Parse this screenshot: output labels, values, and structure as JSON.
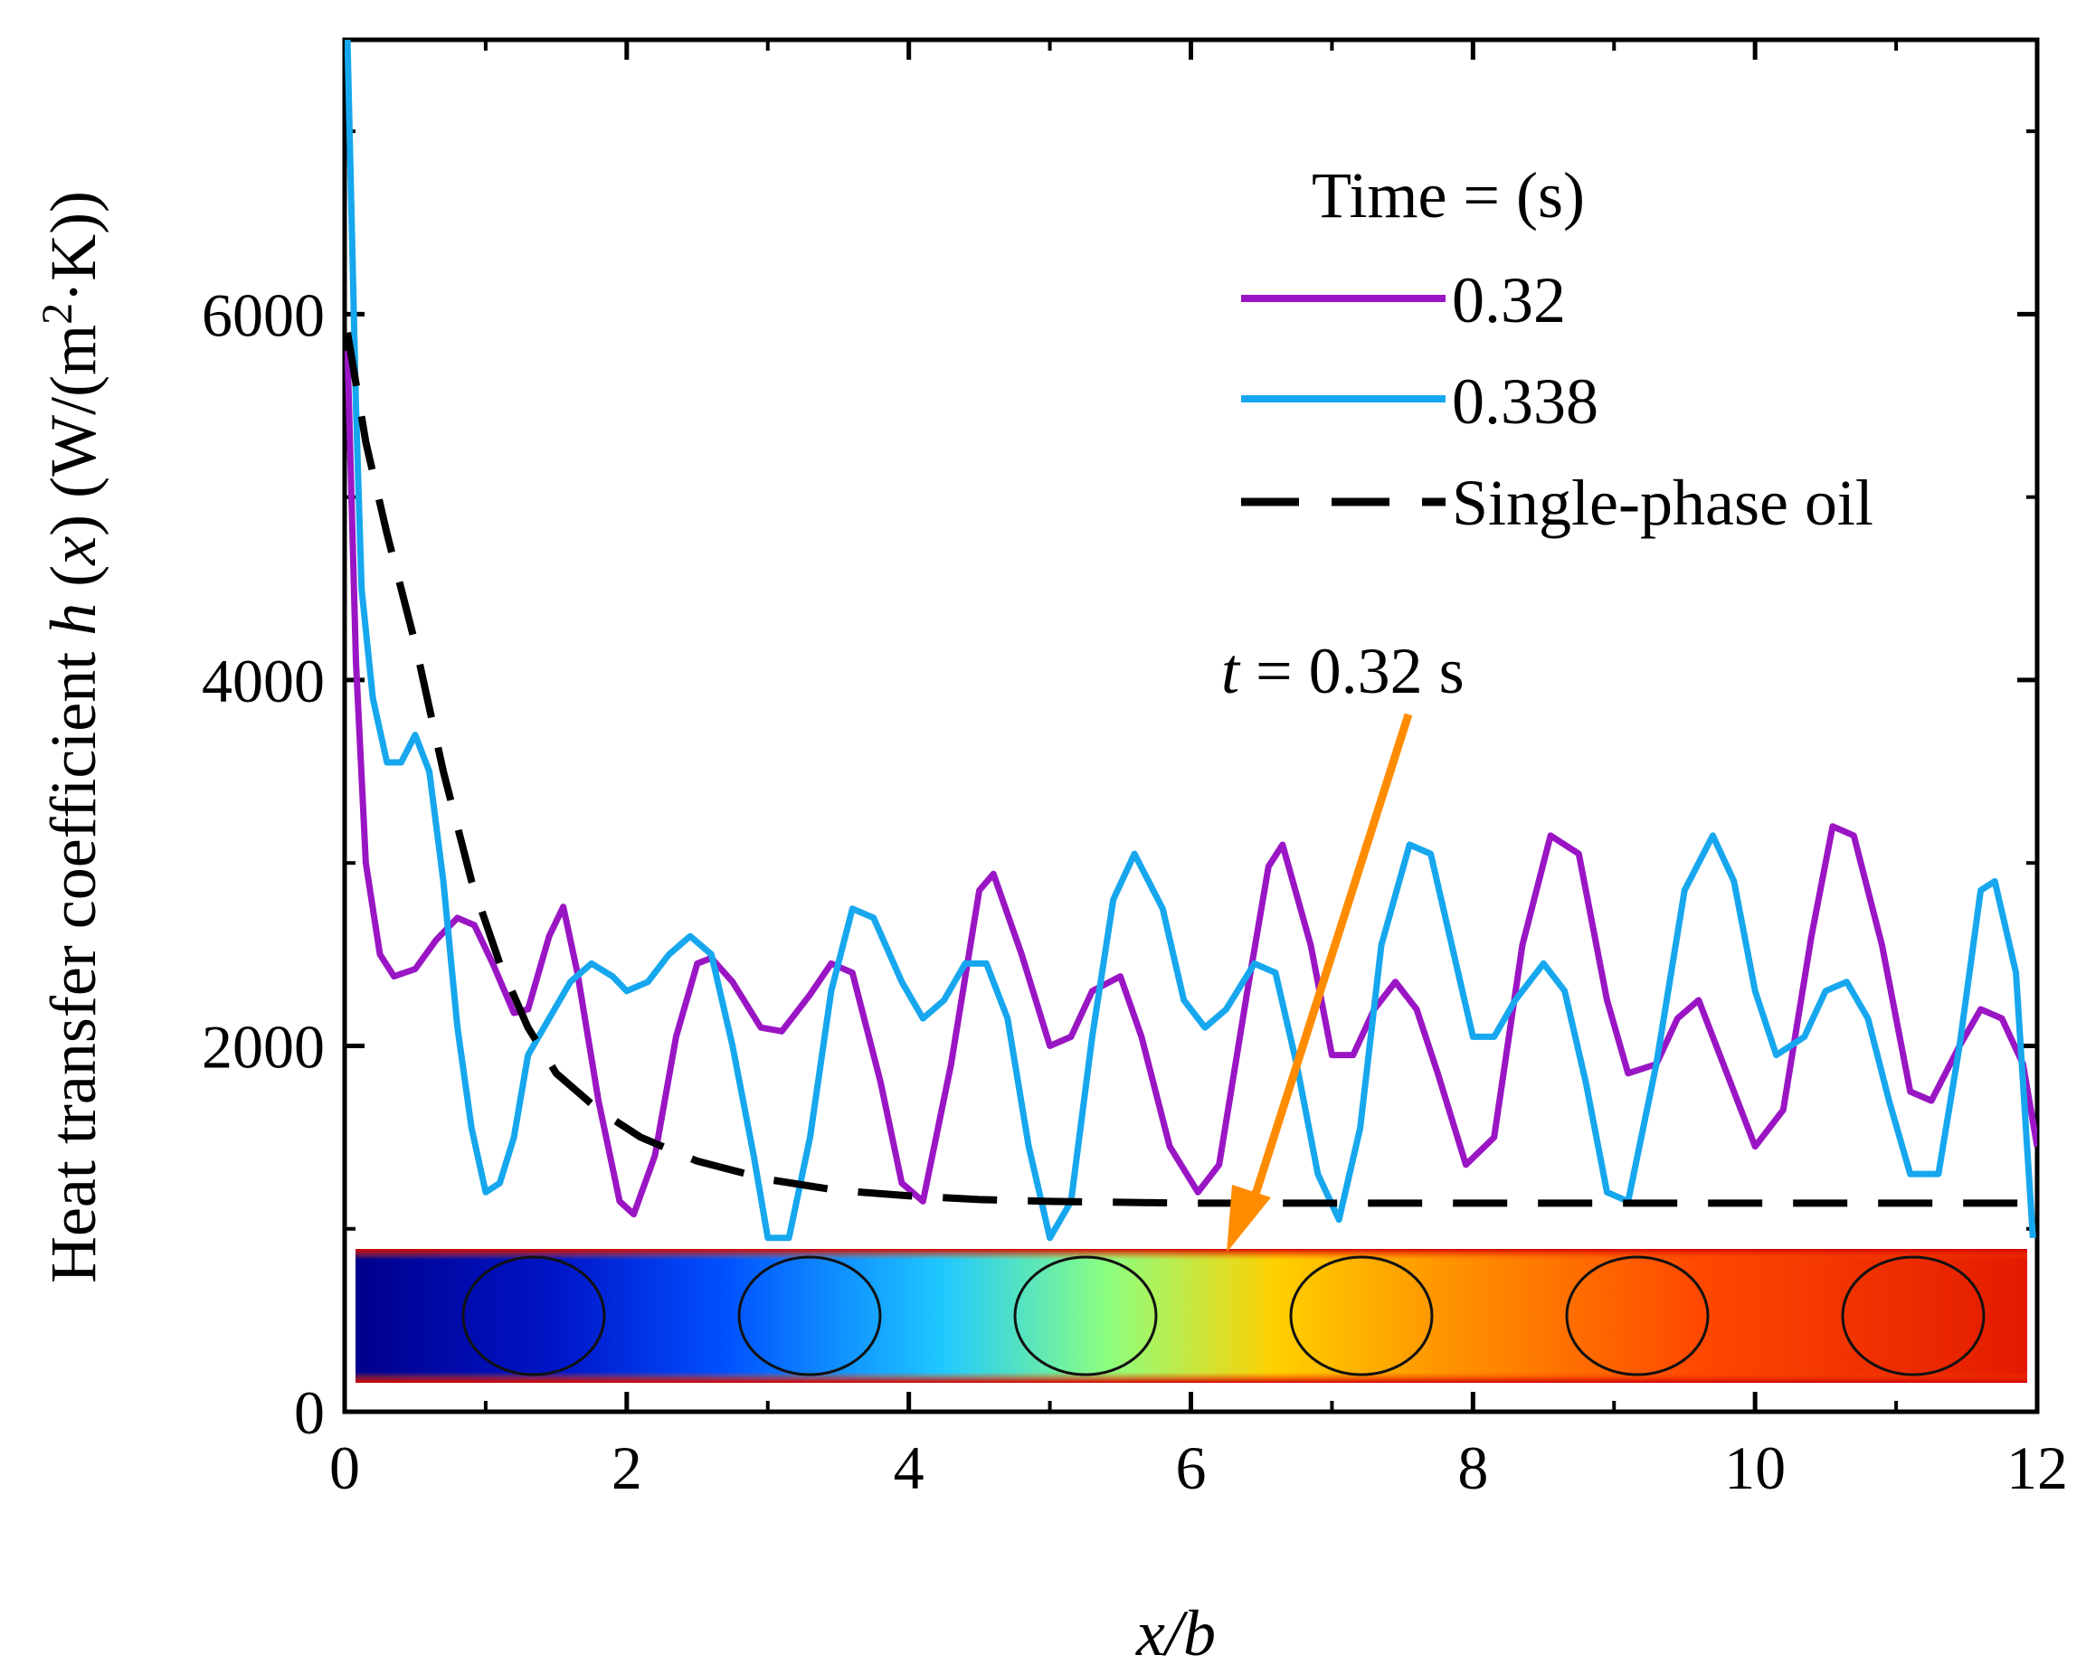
{
  "chart_data": {
    "type": "line",
    "title": "",
    "xlabel": "x/b",
    "ylabel": "Heat transfer coefficient h (x) (W/(m²·K))",
    "ylabel_parts": {
      "prefix": "Heat transfer coefficient ",
      "h": "h",
      "x": "x",
      "unit_start": " (W/(m",
      "sup": "2",
      "unit_end": "·K))"
    },
    "xlim": [
      0,
      12
    ],
    "ylim": [
      0,
      7500
    ],
    "x_ticks": [
      "0",
      "2",
      "4",
      "6",
      "8",
      "10",
      "12"
    ],
    "y_ticks": [
      "0",
      "2000",
      "4000",
      "6000"
    ],
    "grid": false,
    "legend_position": "top-right",
    "legend_title": "Time =  (s)",
    "series": [
      {
        "name": "0.32",
        "color": "#9a16c4",
        "style": "solid",
        "x": [
          0.02,
          0.08,
          0.15,
          0.25,
          0.35,
          0.5,
          0.65,
          0.8,
          0.92,
          1.05,
          1.2,
          1.3,
          1.45,
          1.55,
          1.65,
          1.8,
          1.95,
          2.05,
          2.2,
          2.35,
          2.5,
          2.6,
          2.75,
          2.95,
          3.1,
          3.3,
          3.45,
          3.6,
          3.8,
          3.95,
          4.1,
          4.3,
          4.5,
          4.6,
          4.8,
          5.0,
          5.15,
          5.3,
          5.5,
          5.65,
          5.85,
          6.05,
          6.2,
          6.4,
          6.55,
          6.65,
          6.85,
          7.0,
          7.15,
          7.3,
          7.45,
          7.6,
          7.75,
          7.95,
          8.15,
          8.35,
          8.55,
          8.75,
          8.95,
          9.1,
          9.3,
          9.45,
          9.6,
          9.8,
          10.0,
          10.2,
          10.4,
          10.55,
          10.7,
          10.9,
          11.1,
          11.25,
          11.45,
          11.6,
          11.75,
          11.9,
          12.0
        ],
        "y": [
          5800,
          4100,
          3000,
          2500,
          2380,
          2420,
          2580,
          2700,
          2660,
          2450,
          2180,
          2200,
          2600,
          2760,
          2400,
          1700,
          1150,
          1080,
          1400,
          2050,
          2450,
          2480,
          2350,
          2100,
          2080,
          2280,
          2450,
          2400,
          1800,
          1250,
          1150,
          1900,
          2850,
          2940,
          2500,
          2000,
          2050,
          2300,
          2380,
          2050,
          1450,
          1200,
          1350,
          2300,
          2980,
          3100,
          2550,
          1950,
          1950,
          2200,
          2350,
          2200,
          1850,
          1350,
          1500,
          2550,
          3150,
          3050,
          2250,
          1850,
          1900,
          2150,
          2250,
          1850,
          1450,
          1650,
          2600,
          3200,
          3150,
          2550,
          1750,
          1700,
          2000,
          2200,
          2150,
          1900,
          1450
        ]
      },
      {
        "name": "0.338",
        "color": "#16a7ee",
        "style": "solid",
        "x": [
          0.02,
          0.08,
          0.12,
          0.2,
          0.3,
          0.4,
          0.5,
          0.6,
          0.7,
          0.8,
          0.9,
          1.0,
          1.1,
          1.2,
          1.3,
          1.45,
          1.6,
          1.75,
          1.9,
          2.0,
          2.15,
          2.3,
          2.45,
          2.6,
          2.75,
          2.9,
          3.0,
          3.15,
          3.3,
          3.45,
          3.6,
          3.75,
          3.95,
          4.1,
          4.25,
          4.4,
          4.55,
          4.7,
          4.85,
          5.0,
          5.15,
          5.3,
          5.45,
          5.6,
          5.8,
          5.95,
          6.1,
          6.25,
          6.45,
          6.6,
          6.75,
          6.9,
          7.05,
          7.2,
          7.35,
          7.55,
          7.7,
          7.85,
          8.0,
          8.15,
          8.3,
          8.5,
          8.65,
          8.8,
          8.95,
          9.1,
          9.3,
          9.5,
          9.7,
          9.85,
          10.0,
          10.15,
          10.35,
          10.5,
          10.65,
          10.8,
          10.95,
          11.1,
          11.3,
          11.45,
          11.6,
          11.7,
          11.85,
          11.97
        ],
        "y": [
          7500,
          5500,
          4500,
          3900,
          3550,
          3550,
          3700,
          3500,
          2900,
          2100,
          1550,
          1200,
          1250,
          1500,
          1950,
          2150,
          2350,
          2450,
          2380,
          2300,
          2350,
          2500,
          2600,
          2500,
          2000,
          1400,
          950,
          950,
          1500,
          2300,
          2750,
          2700,
          2350,
          2150,
          2250,
          2450,
          2450,
          2150,
          1450,
          950,
          1150,
          2050,
          2800,
          3050,
          2750,
          2250,
          2100,
          2200,
          2450,
          2400,
          1900,
          1300,
          1050,
          1550,
          2550,
          3100,
          3050,
          2550,
          2050,
          2050,
          2250,
          2450,
          2300,
          1800,
          1200,
          1150,
          1900,
          2850,
          3150,
          2900,
          2300,
          1950,
          2050,
          2300,
          2350,
          2150,
          1700,
          1300,
          1300,
          2000,
          2850,
          2900,
          2400,
          950
        ]
      },
      {
        "name": "Single-phase oil",
        "color": "#000000",
        "style": "dashed",
        "x": [
          0.02,
          0.15,
          0.3,
          0.5,
          0.7,
          0.9,
          1.1,
          1.3,
          1.5,
          1.8,
          2.1,
          2.5,
          3.0,
          3.5,
          4.0,
          4.5,
          5.0,
          6.0,
          7.0,
          8.0,
          9.0,
          10.0,
          11.0,
          12.0
        ],
        "y": [
          5900,
          5300,
          4800,
          4200,
          3500,
          2900,
          2450,
          2100,
          1850,
          1650,
          1500,
          1370,
          1270,
          1210,
          1180,
          1160,
          1150,
          1140,
          1140,
          1140,
          1140,
          1140,
          1140,
          1140
        ]
      }
    ],
    "annotation": {
      "t_symbol": "t",
      "text_rest": " = 0.32 s",
      "arrow_color": "#ff8c00"
    },
    "inset": {
      "description_colors": [
        "#00008b",
        "#0050ff",
        "#00c8ff",
        "#7fff7f",
        "#ffff00",
        "#ff9900",
        "#ff2a00",
        "#cc0000"
      ],
      "bubble_count": 6
    }
  }
}
